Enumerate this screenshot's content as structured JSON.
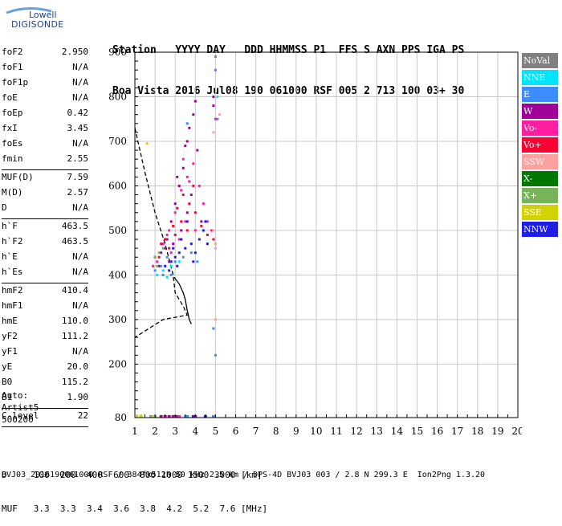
{
  "logo": {
    "line1": "Lowell",
    "line2": "DIGISONDE"
  },
  "header": {
    "line1": "Station   YYYY DAY   DDD HHMMSS P1  FFS S AXN PPS IGA PS",
    "line2": "Boa Vista 2016 Jul08 190 061000 RSF 005 2 713 100 03+ 30"
  },
  "params": {
    "group1": [
      {
        "label": "foF2",
        "value": "2.950"
      },
      {
        "label": "foF1",
        "value": "N/A"
      },
      {
        "label": "foF1p",
        "value": "N/A"
      },
      {
        "label": "foE",
        "value": "N/A"
      },
      {
        "label": "foEp",
        "value": "0.42"
      },
      {
        "label": "fxI",
        "value": "3.45"
      },
      {
        "label": "foEs",
        "value": "N/A"
      },
      {
        "label": "fmin",
        "value": "2.55"
      }
    ],
    "group2": [
      {
        "label": "MUF(D)",
        "value": "7.59"
      },
      {
        "label": "M(D)",
        "value": "2.57"
      },
      {
        "label": "D",
        "value": "N/A"
      }
    ],
    "group3": [
      {
        "label": "h`F",
        "value": "463.5"
      },
      {
        "label": "h`F2",
        "value": "463.5"
      },
      {
        "label": "h`E",
        "value": "N/A"
      },
      {
        "label": "h`Es",
        "value": "N/A"
      }
    ],
    "group4": [
      {
        "label": "hmF2",
        "value": "410.4"
      },
      {
        "label": "hmF1",
        "value": "N/A"
      },
      {
        "label": "hmE",
        "value": "110.0"
      },
      {
        "label": "yF2",
        "value": "111.2"
      },
      {
        "label": "yF1",
        "value": "N/A"
      },
      {
        "label": "yE",
        "value": "20.0"
      },
      {
        "label": "B0",
        "value": "115.2"
      },
      {
        "label": "B1",
        "value": "1.90"
      }
    ],
    "group5": [
      {
        "label": "C-level",
        "value": "22"
      }
    ]
  },
  "auto": {
    "line1": "Auto:",
    "line2": "Artist5",
    "line3": "500200"
  },
  "bottom": {
    "row1": "D     100  200  400  600  800 1000 1500 3000 [km]",
    "row2": "MUF   3.3  3.3  3.4  3.6  3.8  4.2  5.2  7.6 [MHz]"
  },
  "footer": "BVJ03_2016190061000.RSF / 384fx512h 50 kHz 2.5 km / DPS-4D BVJ03 003 / 2.8 N 299.3 E  Ion2Png 1.3.20",
  "legend": [
    {
      "label": "NoVal",
      "color": "#808080",
      "text": "#ffffff"
    },
    {
      "label": "NNE",
      "color": "#00e5ff",
      "text": "#ffffff"
    },
    {
      "label": "E",
      "color": "#3c8cff",
      "text": "#ffffff"
    },
    {
      "label": "W",
      "color": "#a0009a",
      "text": "#ffffff"
    },
    {
      "label": "Vo-",
      "color": "#ff1ea0",
      "text": "#ffffff"
    },
    {
      "label": "Vo+",
      "color": "#ff0032",
      "text": "#ffffff"
    },
    {
      "label": "SSW",
      "color": "#ffa0a0",
      "text": "#ffffff"
    },
    {
      "label": "X-",
      "color": "#007800",
      "text": "#ffffff"
    },
    {
      "label": "X+",
      "color": "#78b45a",
      "text": "#ffffff"
    },
    {
      "label": "SSE",
      "color": "#d2d200",
      "text": "#ffffff"
    },
    {
      "label": "NNW",
      "color": "#1e1ee6",
      "text": "#ffffff"
    }
  ],
  "chart_data": {
    "type": "scatter",
    "title": "",
    "xlabel": "",
    "ylabel": "",
    "xlim": [
      1,
      20
    ],
    "ylim": [
      80,
      900
    ],
    "x_ticks": [
      1,
      2,
      3,
      4,
      5,
      6,
      7,
      8,
      9,
      10,
      11,
      12,
      13,
      14,
      15,
      16,
      17,
      18,
      19,
      20
    ],
    "y_ticks": [
      80,
      200,
      300,
      400,
      500,
      600,
      700,
      800,
      900
    ],
    "grid": true,
    "series": [
      {
        "name": "W",
        "points": [
          [
            2.3,
            450
          ],
          [
            2.6,
            480
          ],
          [
            2.8,
            520
          ],
          [
            3.0,
            560
          ],
          [
            3.2,
            600
          ],
          [
            3.4,
            640
          ],
          [
            3.5,
            690
          ],
          [
            3.7,
            730
          ],
          [
            3.9,
            760
          ],
          [
            4.0,
            790
          ],
          [
            3.3,
            500
          ],
          [
            3.6,
            540
          ],
          [
            2.9,
            470
          ],
          [
            2.7,
            430
          ],
          [
            4.9,
            780
          ],
          [
            4.9,
            800
          ],
          [
            4.3,
            520
          ],
          [
            3.8,
            580
          ],
          [
            3.1,
            620
          ],
          [
            2.5,
            460
          ],
          [
            2.2,
            420
          ],
          [
            3.6,
            700
          ],
          [
            4.1,
            680
          ],
          [
            2.0,
            440
          ]
        ]
      },
      {
        "name": "Vo-",
        "points": [
          [
            2.1,
            430
          ],
          [
            2.4,
            470
          ],
          [
            2.7,
            500
          ],
          [
            3.0,
            540
          ],
          [
            3.3,
            590
          ],
          [
            3.6,
            620
          ],
          [
            3.9,
            650
          ],
          [
            4.2,
            600
          ],
          [
            4.4,
            560
          ],
          [
            4.6,
            520
          ],
          [
            3.2,
            480
          ],
          [
            2.8,
            450
          ],
          [
            3.5,
            520
          ],
          [
            4.0,
            500
          ],
          [
            5.0,
            750
          ],
          [
            3.7,
            610
          ],
          [
            2.6,
            490
          ],
          [
            1.9,
            420
          ],
          [
            4.8,
            500
          ],
          [
            3.4,
            660
          ]
        ]
      },
      {
        "name": "Vo+",
        "points": [
          [
            2.2,
            440
          ],
          [
            2.5,
            480
          ],
          [
            2.9,
            510
          ],
          [
            3.1,
            550
          ],
          [
            3.4,
            580
          ],
          [
            3.7,
            560
          ],
          [
            4.0,
            540
          ],
          [
            4.3,
            510
          ],
          [
            3.6,
            500
          ],
          [
            3.0,
            490
          ],
          [
            2.7,
            460
          ],
          [
            4.6,
            490
          ],
          [
            4.9,
            480
          ],
          [
            3.3,
            520
          ],
          [
            2.3,
            470
          ],
          [
            3.9,
            600
          ]
        ]
      },
      {
        "name": "NNW",
        "points": [
          [
            2.5,
            420
          ],
          [
            2.8,
            430
          ],
          [
            3.0,
            440
          ],
          [
            3.2,
            450
          ],
          [
            3.5,
            460
          ],
          [
            3.8,
            470
          ],
          [
            4.0,
            450
          ],
          [
            4.2,
            480
          ],
          [
            4.4,
            500
          ],
          [
            3.6,
            520
          ],
          [
            3.3,
            480
          ],
          [
            2.9,
            460
          ],
          [
            4.6,
            470
          ],
          [
            2.7,
            410
          ],
          [
            3.1,
            420
          ],
          [
            3.9,
            430
          ],
          [
            4.5,
            520
          ]
        ]
      },
      {
        "name": "E",
        "points": [
          [
            2.0,
            410
          ],
          [
            2.3,
            420
          ],
          [
            2.6,
            440
          ],
          [
            3.0,
            430
          ],
          [
            3.4,
            440
          ],
          [
            3.8,
            450
          ],
          [
            4.1,
            430
          ],
          [
            5.0,
            890
          ],
          [
            5.0,
            860
          ],
          [
            5.1,
            750
          ],
          [
            2.8,
            400
          ],
          [
            4.9,
            280
          ],
          [
            5.0,
            220
          ],
          [
            3.6,
            740
          ],
          [
            2.4,
            400
          ]
        ]
      },
      {
        "name": "NNE",
        "points": [
          [
            2.1,
            400
          ],
          [
            2.4,
            410
          ],
          [
            2.8,
            420
          ],
          [
            3.2,
            430
          ],
          [
            2.6,
            395
          ],
          [
            5.1,
            800
          ]
        ]
      },
      {
        "name": "SSW",
        "points": [
          [
            4.9,
            720
          ],
          [
            4.9,
            500
          ],
          [
            5.0,
            470
          ],
          [
            5.0,
            460
          ],
          [
            5.0,
            300
          ],
          [
            5.2,
            760
          ]
        ]
      },
      {
        "name": "X+",
        "points": [
          [
            2.0,
            440
          ],
          [
            2.2,
            450
          ],
          [
            2.1,
            420
          ],
          [
            2.4,
            460
          ]
        ]
      },
      {
        "name": "SSE",
        "points": [
          [
            1.6,
            695
          ],
          [
            1.3,
            84
          ],
          [
            1.1,
            84
          ]
        ]
      }
    ],
    "baseline_points": [
      {
        "x": 1.3,
        "y": 82,
        "series": "SSE"
      },
      {
        "x": 1.8,
        "y": 82,
        "series": "X+"
      },
      {
        "x": 2.0,
        "y": 82,
        "series": "X+"
      },
      {
        "x": 2.3,
        "y": 82,
        "series": "W"
      },
      {
        "x": 2.5,
        "y": 82,
        "series": "W"
      },
      {
        "x": 2.7,
        "y": 82,
        "series": "W"
      },
      {
        "x": 2.9,
        "y": 82,
        "series": "W"
      },
      {
        "x": 3.1,
        "y": 82,
        "series": "W"
      },
      {
        "x": 3.2,
        "y": 82,
        "series": "Vo-"
      },
      {
        "x": 3.5,
        "y": 82,
        "series": "NNE"
      },
      {
        "x": 3.6,
        "y": 82,
        "series": "E"
      },
      {
        "x": 3.9,
        "y": 82,
        "series": "NNW"
      },
      {
        "x": 4.0,
        "y": 82,
        "series": "W"
      },
      {
        "x": 4.5,
        "y": 82,
        "series": "NNW"
      },
      {
        "x": 4.9,
        "y": 82,
        "series": "E"
      }
    ],
    "profile_solid": [
      [
        2.95,
        395
      ],
      [
        3.2,
        380
      ],
      [
        3.4,
        360
      ],
      [
        3.5,
        345
      ],
      [
        3.6,
        320
      ],
      [
        3.7,
        300
      ],
      [
        3.8,
        290
      ]
    ],
    "profile_dashed": [
      [
        1.0,
        730
      ],
      [
        1.5,
        630
      ],
      [
        2.0,
        540
      ],
      [
        2.5,
        470
      ],
      [
        2.9,
        400
      ],
      [
        3.0,
        360
      ],
      [
        3.2,
        345
      ],
      [
        3.4,
        330
      ],
      [
        3.6,
        310
      ],
      [
        2.4,
        300
      ],
      [
        1.0,
        260
      ]
    ]
  }
}
